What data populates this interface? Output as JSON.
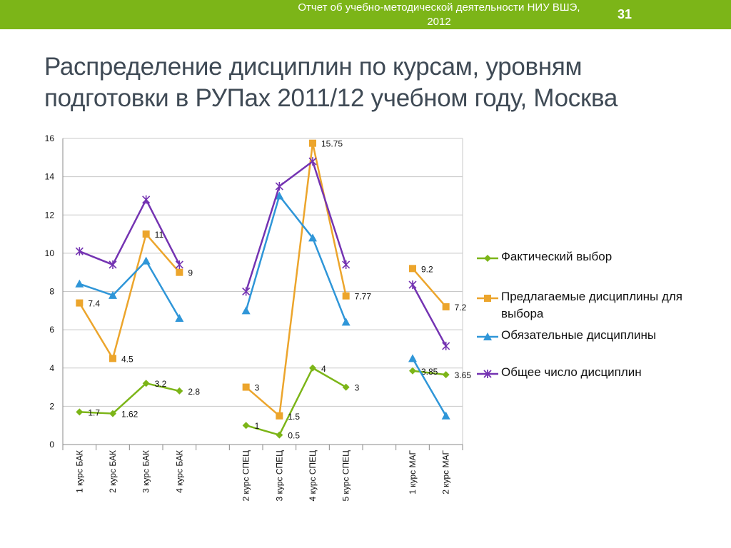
{
  "header": {
    "report_title": "Отчет об учебно-методической деятельности НИУ ВШЭ, 2012",
    "page_number": "31"
  },
  "slide": {
    "title": "Распределение дисциплин по курсам, уровням подготовки в РУПах 2011/12 учебном году, Москва"
  },
  "chart_data": {
    "type": "line",
    "title": "",
    "xlabel": "",
    "ylabel": "",
    "ylim": [
      0,
      16
    ],
    "yticks": [
      0,
      2,
      4,
      6,
      8,
      10,
      12,
      14,
      16
    ],
    "grid": true,
    "legend_position": "right",
    "categories": [
      "1 курс БАК",
      "2 курс БАК",
      "3 курс БАК",
      "4 курс БАК",
      "",
      "2 курс СПЕЦ",
      "3 курс СПЕЦ",
      "4 курс СПЕЦ",
      "5 курс СПЕЦ",
      "",
      "1 курс МАГ",
      "2 курс МАГ"
    ],
    "series": [
      {
        "name": "Фактический выбор",
        "color": "#7cb518",
        "marker": "diamond",
        "values": [
          1.7,
          1.62,
          3.2,
          2.8,
          null,
          1,
          0.5,
          4,
          3,
          null,
          3.85,
          3.65
        ],
        "labels": [
          "1.7",
          "1.62",
          "3.2",
          "2.8",
          null,
          "1",
          "0.5",
          "4",
          "3",
          null,
          "3.85",
          "3.65"
        ]
      },
      {
        "name": "Предлагаемые дисциплины для выбора",
        "color": "#eca52c",
        "marker": "square",
        "values": [
          7.4,
          4.5,
          11,
          9,
          null,
          3,
          1.5,
          15.75,
          7.77,
          null,
          9.2,
          7.2
        ],
        "labels": [
          "7.4",
          "4.5",
          "11",
          "9",
          null,
          "3",
          "1.5",
          "15.75",
          "7.77",
          null,
          "9.2",
          "7.2"
        ]
      },
      {
        "name": "Обязательные дисциплины",
        "color": "#2f96d8",
        "marker": "triangle",
        "values": [
          8.4,
          7.8,
          9.6,
          6.6,
          null,
          7,
          13,
          10.8,
          6.4,
          null,
          4.5,
          1.5
        ],
        "labels": []
      },
      {
        "name": "Общее число дисциплин",
        "color": "#7433b2",
        "marker": "star",
        "values": [
          10.1,
          9.4,
          12.8,
          9.4,
          null,
          8,
          13.5,
          14.8,
          9.4,
          null,
          8.35,
          5.15
        ],
        "labels": []
      }
    ]
  }
}
